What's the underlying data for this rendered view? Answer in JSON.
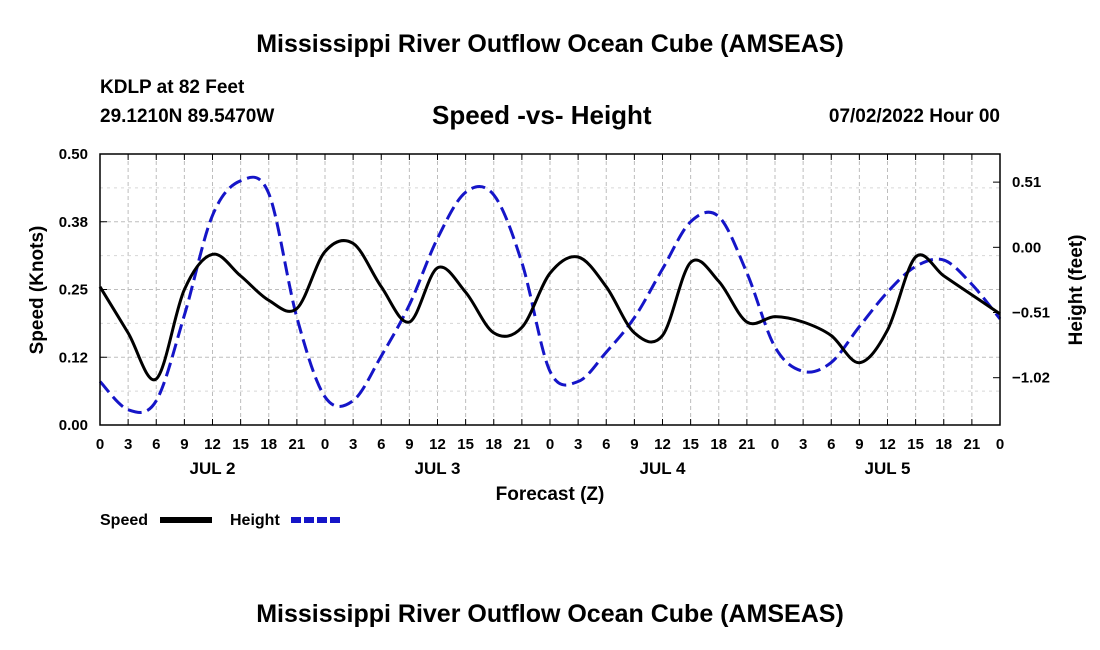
{
  "header": {
    "title": "Mississippi River Outflow Ocean Cube (AMSEAS)",
    "station": "KDLP at 82 Feet",
    "coords": "29.1210N  89.5470W",
    "subtitle": "Speed -vs- Height",
    "datetime": "07/02/2022 Hour 00",
    "footer_title": "Mississippi River Outflow Ocean Cube (AMSEAS)"
  },
  "legend": {
    "speed_label": "Speed",
    "height_label": "Height",
    "speed_color": "#000000",
    "height_color": "#1515c8"
  },
  "chart_data": {
    "type": "line",
    "xlabel": "Forecast (Z)",
    "ylabel_left": "Speed (Knots)",
    "ylabel_right": "Height (feet)",
    "x_range_hours": [
      0,
      96
    ],
    "x_tick_labels": [
      "0",
      "3",
      "6",
      "9",
      "12",
      "15",
      "18",
      "21",
      "0",
      "3",
      "6",
      "9",
      "12",
      "15",
      "18",
      "21",
      "0",
      "3",
      "6",
      "9",
      "12",
      "15",
      "18",
      "21",
      "0",
      "3",
      "6",
      "9",
      "12",
      "15",
      "18",
      "21",
      "0"
    ],
    "day_labels": [
      "JUL 2",
      "JUL 3",
      "JUL 4",
      "JUL 5"
    ],
    "left_axis": {
      "ylim": [
        0,
        0.5
      ],
      "tick_labels": [
        "0.00",
        "0.12",
        "0.25",
        "0.38",
        "0.50"
      ]
    },
    "right_axis": {
      "ylim": [
        -1.39,
        0.73
      ],
      "tick_labels": [
        "−1.02",
        "−0.51",
        "0.00",
        "0.51"
      ],
      "tick_values": [
        -1.02,
        -0.51,
        0.0,
        0.51
      ]
    },
    "grid": true,
    "series": [
      {
        "name": "Speed",
        "axis": "left",
        "style": "solid",
        "x": [
          0,
          3,
          6,
          9,
          12,
          15,
          18,
          21,
          24,
          27,
          30,
          33,
          36,
          39,
          42,
          45,
          48,
          51,
          54,
          57,
          60,
          63,
          66,
          69,
          72,
          75,
          78,
          81,
          84,
          87,
          90,
          93,
          96
        ],
        "y": [
          0.255,
          0.17,
          0.085,
          0.25,
          0.315,
          0.275,
          0.23,
          0.215,
          0.32,
          0.335,
          0.255,
          0.19,
          0.29,
          0.245,
          0.17,
          0.18,
          0.28,
          0.31,
          0.255,
          0.17,
          0.165,
          0.3,
          0.265,
          0.19,
          0.2,
          0.19,
          0.165,
          0.115,
          0.175,
          0.31,
          0.275,
          0.24,
          0.205
        ]
      },
      {
        "name": "Height",
        "axis": "right",
        "style": "dashed",
        "x": [
          0,
          3,
          6,
          9,
          12,
          15,
          18,
          21,
          24,
          27,
          30,
          33,
          36,
          39,
          42,
          45,
          48,
          51,
          54,
          57,
          60,
          63,
          66,
          69,
          72,
          75,
          78,
          81,
          84,
          87,
          90,
          93,
          96
        ],
        "y": [
          -1.05,
          -1.27,
          -1.2,
          -0.53,
          0.25,
          0.52,
          0.42,
          -0.55,
          -1.17,
          -1.2,
          -0.85,
          -0.45,
          0.07,
          0.43,
          0.41,
          -0.12,
          -0.97,
          -1.05,
          -0.82,
          -0.55,
          -0.17,
          0.2,
          0.24,
          -0.2,
          -0.78,
          -0.97,
          -0.9,
          -0.62,
          -0.35,
          -0.15,
          -0.1,
          -0.29,
          -0.56
        ]
      }
    ]
  }
}
